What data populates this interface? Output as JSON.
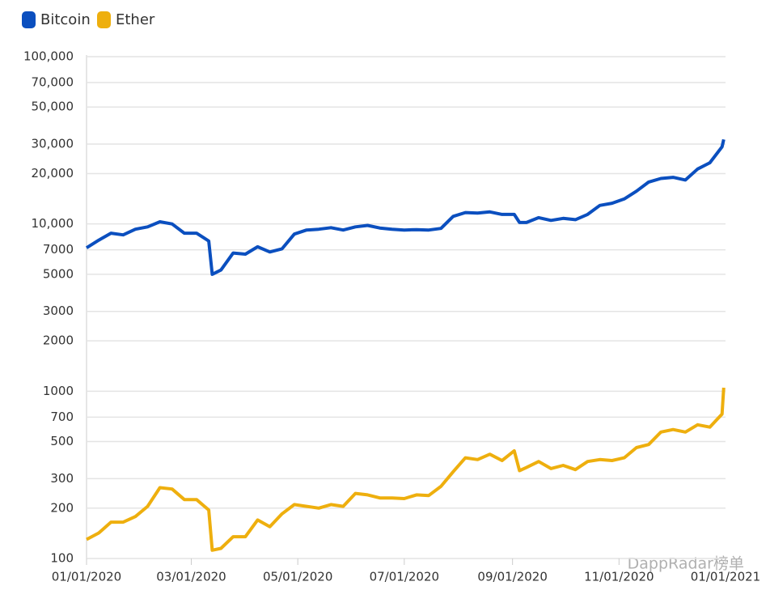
{
  "chart_data": {
    "type": "line",
    "log_y": true,
    "grid": true,
    "legend": "top-left",
    "watermark": "DappRadar榜单",
    "x": [
      "2020-01-01",
      "2020-01-08",
      "2020-01-15",
      "2020-01-22",
      "2020-01-29",
      "2020-02-05",
      "2020-02-12",
      "2020-02-19",
      "2020-02-26",
      "2020-03-04",
      "2020-03-11",
      "2020-03-13",
      "2020-03-18",
      "2020-03-25",
      "2020-04-01",
      "2020-04-08",
      "2020-04-15",
      "2020-04-22",
      "2020-04-29",
      "2020-05-06",
      "2020-05-13",
      "2020-05-20",
      "2020-05-27",
      "2020-06-03",
      "2020-06-10",
      "2020-06-17",
      "2020-06-24",
      "2020-07-01",
      "2020-07-08",
      "2020-07-15",
      "2020-07-22",
      "2020-07-29",
      "2020-08-05",
      "2020-08-12",
      "2020-08-19",
      "2020-08-26",
      "2020-09-02",
      "2020-09-05",
      "2020-09-09",
      "2020-09-16",
      "2020-09-23",
      "2020-09-30",
      "2020-10-07",
      "2020-10-14",
      "2020-10-21",
      "2020-10-28",
      "2020-11-04",
      "2020-11-11",
      "2020-11-18",
      "2020-11-25",
      "2020-12-02",
      "2020-12-09",
      "2020-12-16",
      "2020-12-23",
      "2020-12-30",
      "2020-12-31"
    ],
    "xlim": [
      "2020-01-01",
      "2021-01-01"
    ],
    "xticks": [
      {
        "value": "2020-01-01",
        "label": "01/01/2020"
      },
      {
        "value": "2020-03-01",
        "label": "03/01/2020"
      },
      {
        "value": "2020-05-01",
        "label": "05/01/2020"
      },
      {
        "value": "2020-07-01",
        "label": "07/01/2020"
      },
      {
        "value": "2020-09-01",
        "label": "09/01/2020"
      },
      {
        "value": "2020-11-01",
        "label": "11/01/2020"
      },
      {
        "value": "2021-01-01",
        "label": "01/01/2021"
      }
    ],
    "ylim": [
      100,
      100000
    ],
    "yticks": [
      100,
      200,
      300,
      500,
      700,
      1000,
      2000,
      3000,
      5000,
      7000,
      {
        "value": 10000,
        "label": "10,000"
      },
      {
        "value": 20000,
        "label": "20,000"
      },
      {
        "value": 30000,
        "label": "30,000"
      },
      {
        "value": 50000,
        "label": "50,000"
      },
      {
        "value": 70000,
        "label": "70,000"
      },
      {
        "value": 100000,
        "label": "100,000"
      }
    ],
    "series": [
      {
        "name": "Bitcoin",
        "color": "#0b4fbf",
        "values": [
          7200,
          8000,
          8800,
          8600,
          9300,
          9600,
          10300,
          10000,
          8800,
          8800,
          7900,
          5000,
          5300,
          6700,
          6600,
          7300,
          6800,
          7100,
          8700,
          9200,
          9300,
          9500,
          9200,
          9600,
          9800,
          9450,
          9300,
          9200,
          9250,
          9200,
          9400,
          11100,
          11700,
          11600,
          11800,
          11400,
          11400,
          10200,
          10200,
          10900,
          10500,
          10800,
          10600,
          11400,
          12900,
          13300,
          14100,
          15700,
          17800,
          18700,
          19000,
          18300,
          21300,
          23200,
          28900,
          32000
        ]
      },
      {
        "name": "Ether",
        "color": "#eeaf0e",
        "values": [
          130,
          142,
          165,
          165,
          178,
          205,
          265,
          260,
          225,
          225,
          195,
          112,
          115,
          135,
          135,
          170,
          155,
          185,
          210,
          205,
          200,
          210,
          205,
          245,
          240,
          230,
          230,
          228,
          240,
          238,
          270,
          330,
          400,
          390,
          420,
          385,
          440,
          335,
          350,
          380,
          345,
          360,
          340,
          380,
          390,
          385,
          400,
          460,
          480,
          570,
          590,
          570,
          630,
          610,
          730,
          1050
        ]
      }
    ]
  }
}
